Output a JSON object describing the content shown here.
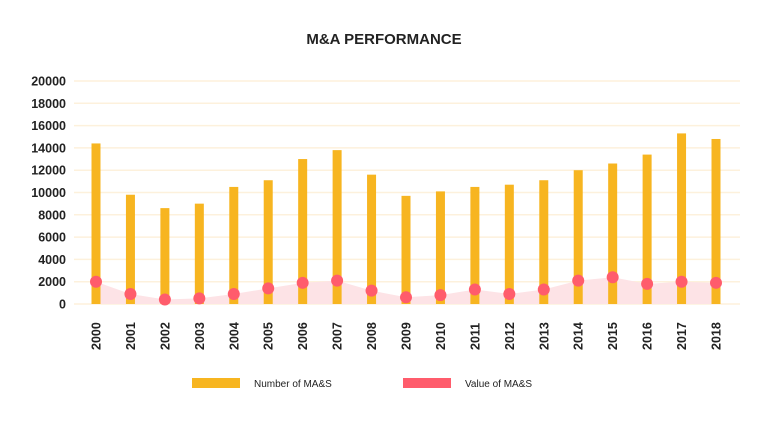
{
  "chart_data": {
    "type": "bar",
    "title": "M&A PERFORMANCE",
    "categories": [
      "2000",
      "2001",
      "2002",
      "2003",
      "2004",
      "2005",
      "2006",
      "2007",
      "2008",
      "2009",
      "2010",
      "2011",
      "2012",
      "2013",
      "2014",
      "2015",
      "2016",
      "2017",
      "2018"
    ],
    "ylim": [
      0,
      20000
    ],
    "yticks": [
      0,
      2000,
      4000,
      6000,
      8000,
      10000,
      12000,
      14000,
      16000,
      18000,
      20000
    ],
    "grid": true,
    "legend_position": "bottom",
    "series": [
      {
        "name": "Number of MA&S",
        "type": "bar",
        "color": "#F7B520",
        "values": [
          14400,
          9800,
          8600,
          9000,
          10500,
          11100,
          13000,
          13800,
          11600,
          9700,
          10100,
          10500,
          10700,
          11100,
          12000,
          12600,
          13400,
          15300,
          14800
        ]
      },
      {
        "name": "Value of MA&S",
        "type": "line-area",
        "color": "#FF5C6C",
        "fill": "#FDE3E6",
        "values": [
          2000,
          900,
          400,
          500,
          900,
          1400,
          1900,
          2100,
          1200,
          600,
          800,
          1300,
          900,
          1300,
          2100,
          2400,
          1800,
          2000,
          1900
        ]
      }
    ]
  }
}
